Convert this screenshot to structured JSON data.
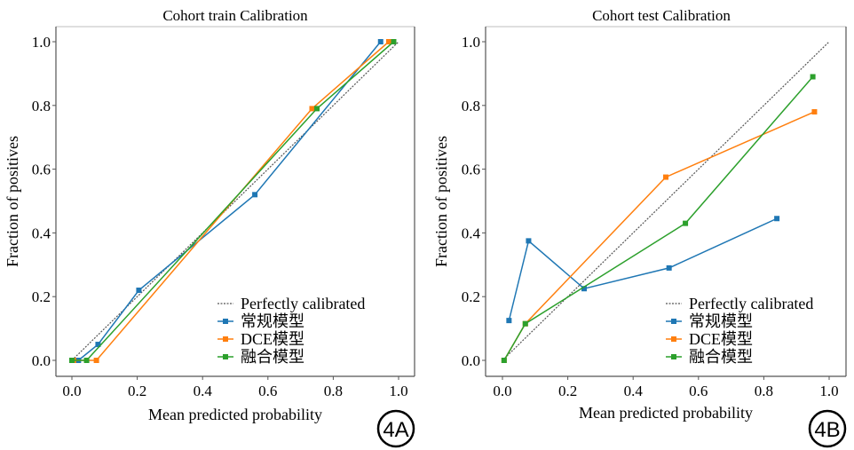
{
  "chart_data": [
    {
      "type": "line",
      "title": "Cohort train Calibration",
      "xlabel": "Mean predicted probability",
      "ylabel": "Fraction of positives",
      "xlim": [
        -0.05,
        1.05
      ],
      "ylim": [
        -0.05,
        1.05
      ],
      "xticks": [
        "0.0",
        "0.2",
        "0.4",
        "0.6",
        "0.8",
        "1.0"
      ],
      "yticks": [
        "0.0",
        "0.2",
        "0.4",
        "0.6",
        "0.8",
        "1.0"
      ],
      "grid": false,
      "legend_position": "bottom-right",
      "badge": "4A",
      "reference": {
        "name": "Perfectly calibrated",
        "x": [
          0,
          1
        ],
        "y": [
          0,
          1
        ],
        "color": "#555555"
      },
      "series": [
        {
          "name": "常规模型",
          "color": "#1f77b4",
          "x": [
            0.005,
            0.02,
            0.08,
            0.205,
            0.56,
            0.945
          ],
          "y": [
            0.0,
            0.0,
            0.05,
            0.22,
            0.52,
            1.0
          ]
        },
        {
          "name": "DCE模型",
          "color": "#ff7f0e",
          "x": [
            0.005,
            0.075,
            0.735,
            0.97
          ],
          "y": [
            0.0,
            0.0,
            0.79,
            1.0
          ]
        },
        {
          "name": "融合模型",
          "color": "#2ca02c",
          "x": [
            0.0,
            0.045,
            0.75,
            0.985
          ],
          "y": [
            0.0,
            0.0,
            0.79,
            1.0
          ]
        }
      ]
    },
    {
      "type": "line",
      "title": "Cohort test Calibration",
      "xlabel": "Mean predicted probability",
      "ylabel": "Fraction of positives",
      "xlim": [
        -0.05,
        1.05
      ],
      "ylim": [
        -0.05,
        1.05
      ],
      "xticks": [
        "0.0",
        "0.2",
        "0.4",
        "0.6",
        "0.8",
        "1.0"
      ],
      "yticks": [
        "0.0",
        "0.2",
        "0.4",
        "0.6",
        "0.8",
        "1.0"
      ],
      "grid": false,
      "legend_position": "bottom-right",
      "badge": "4B",
      "reference": {
        "name": "Perfectly calibrated",
        "x": [
          0,
          1
        ],
        "y": [
          0,
          1
        ],
        "color": "#555555"
      },
      "series": [
        {
          "name": "常规模型",
          "color": "#1f77b4",
          "x": [
            0.02,
            0.08,
            0.25,
            0.51,
            0.84
          ],
          "y": [
            0.125,
            0.375,
            0.225,
            0.29,
            0.445
          ]
        },
        {
          "name": "DCE模型",
          "color": "#ff7f0e",
          "x": [
            0.005,
            0.07,
            0.5,
            0.955
          ],
          "y": [
            0.0,
            0.115,
            0.575,
            0.78
          ]
        },
        {
          "name": "融合模型",
          "color": "#2ca02c",
          "x": [
            0.005,
            0.07,
            0.56,
            0.95
          ],
          "y": [
            0.0,
            0.115,
            0.43,
            0.89
          ]
        }
      ]
    }
  ]
}
